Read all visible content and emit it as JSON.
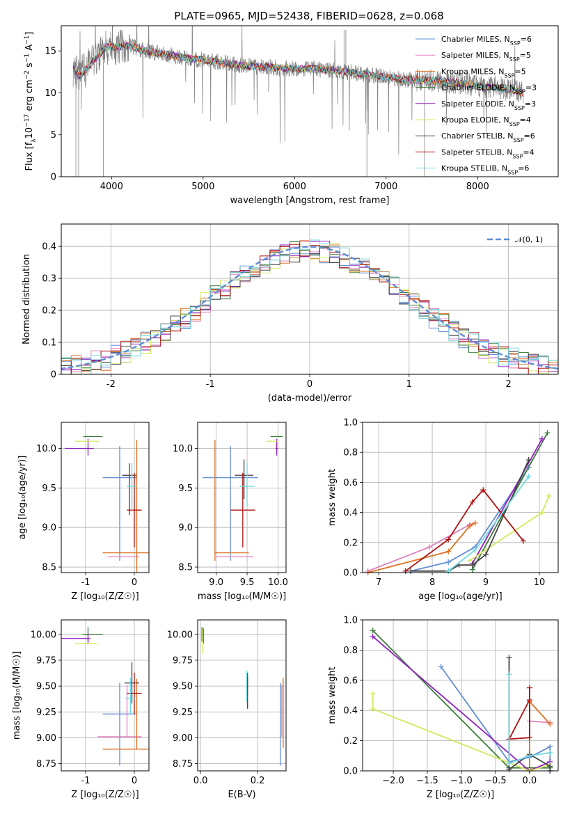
{
  "figure": {
    "title": "PLATE=0965, MJD=52438, FIBERID=0628, z=0.068"
  },
  "colors": {
    "chabrier_miles": "#5f8dd8",
    "salpeter_miles": "#e07fc0",
    "kroupa_miles": "#e07020",
    "chabrier_elodie": "#3c7a3c",
    "salpeter_elodie": "#9020c0",
    "kroupa_elodie": "#d4e860",
    "chabrier_stelib": "#444444",
    "salpeter_stelib": "#b01010",
    "kroupa_stelib": "#70d8e0",
    "data": "#808080",
    "normal": "#5f8dd8"
  },
  "chart_data": [
    {
      "id": "spectrum",
      "type": "line",
      "xlabel": "wavelength [Angstrom, rest frame]",
      "xlim": [
        3450,
        8880
      ],
      "ylim": [
        0,
        18
      ],
      "xticks": [
        4000,
        5000,
        6000,
        7000,
        8000
      ],
      "yticks": [
        0,
        5,
        10,
        15
      ],
      "grid": false,
      "legend_position": "top-right",
      "series": [
        {
          "name": "Chabrier MILES, N",
          "sub": "SSP",
          "suffix": "=6"
        },
        {
          "name": "Salpeter MILES, N",
          "sub": "SSP",
          "suffix": "=5"
        },
        {
          "name": "Kroupa MILES, N",
          "sub": "SSP",
          "suffix": "=5"
        },
        {
          "name": "Chabrier ELODIE, N",
          "sub": "SSP",
          "suffix": "=3"
        },
        {
          "name": "Salpeter ELODIE, N",
          "sub": "SSP",
          "suffix": "=3"
        },
        {
          "name": "Kroupa ELODIE, N",
          "sub": "SSP",
          "suffix": "=4"
        },
        {
          "name": "Chabrier STELIB, N",
          "sub": "SSP",
          "suffix": "=6"
        },
        {
          "name": "Salpeter STELIB, N",
          "sub": "SSP",
          "suffix": "=4"
        },
        {
          "name": "Kroupa STELIB, N",
          "sub": "SSP",
          "suffix": "=6"
        }
      ],
      "continuum": {
        "x": [
          3580,
          3650,
          3800,
          3950,
          4100,
          4200,
          4400,
          4600,
          4800,
          5000,
          5200,
          5500,
          5800,
          6000,
          6200,
          6500,
          6700,
          7000,
          7200,
          7400,
          7600,
          7800,
          8000,
          8200,
          8400,
          8500
        ],
        "y": [
          12.8,
          12.0,
          13.8,
          15.5,
          15.5,
          15.6,
          14.9,
          14.6,
          14.2,
          13.9,
          13.6,
          13.2,
          13.0,
          12.9,
          12.9,
          12.6,
          12.3,
          11.9,
          11.6,
          11.5,
          11.4,
          11.2,
          10.8,
          10.6,
          10.3,
          10.0
        ]
      }
    },
    {
      "id": "residual-histogram",
      "type": "histogram",
      "xlabel": "(data-model)/error",
      "ylabel": "Normed distribution",
      "xlim": [
        -2.5,
        2.5
      ],
      "ylim": [
        0,
        0.47
      ],
      "xticks": [
        -2,
        -1,
        0,
        1,
        2
      ],
      "yticks": [
        0.0,
        0.1,
        0.2,
        0.3,
        0.4
      ],
      "bin_width": 0.1,
      "grid": true,
      "legend_position": "top-right",
      "legend_label": "𝒩(0, 1)",
      "normal": {
        "mean": 0,
        "sigma": 1
      }
    },
    {
      "id": "age-vs-z",
      "type": "errorbar",
      "xlabel": "Z [log₁₀(Z/Z☉)]",
      "ylabel": "age  [log₁₀(age/yr)]",
      "xlim": [
        -1.5,
        0.3
      ],
      "ylim": [
        8.43,
        10.33
      ],
      "xticks": [
        -1,
        0
      ],
      "yticks": [
        8.5,
        9.0,
        9.5,
        10.0
      ],
      "ytick_labels": [
        "8.5",
        "9.0",
        "9.5",
        "10.0"
      ],
      "points": [
        {
          "model": "chabrier_miles",
          "x": -0.3,
          "xerr": [
            0.35,
            0.35
          ],
          "y": 9.63,
          "yerr": [
            1.05,
            0.4
          ]
        },
        {
          "model": "salpeter_miles",
          "x": -0.22,
          "xerr": [
            0.32,
            0.32
          ],
          "y": 8.63,
          "yerr": [
            0,
            0
          ]
        },
        {
          "model": "kroupa_miles",
          "x": 0.05,
          "xerr": [
            0.7,
            0.25
          ],
          "y": 8.68,
          "yerr": [
            0.3,
            1.43
          ]
        },
        {
          "model": "chabrier_elodie",
          "x": -0.93,
          "xerr": [
            0.12,
            0.28
          ],
          "y": 10.15,
          "yerr": [
            0,
            0
          ]
        },
        {
          "model": "salpeter_elodie",
          "x": -0.95,
          "xerr": [
            0.48,
            0.12
          ],
          "y": 10.0,
          "yerr": [
            0.09,
            0.12
          ]
        },
        {
          "model": "kroupa_elodie",
          "x": -0.92,
          "xerr": [
            0.3,
            0.2
          ],
          "y": 10.09,
          "yerr": [
            0,
            0
          ]
        },
        {
          "model": "chabrier_stelib",
          "x": -0.1,
          "xerr": [
            0.15,
            0.15
          ],
          "y": 9.66,
          "yerr": [
            0.5,
            0.15
          ]
        },
        {
          "model": "salpeter_stelib",
          "x": 0.0,
          "xerr": [
            0.15,
            0.15
          ],
          "y": 9.22,
          "yerr": [
            0.47,
            0.47
          ]
        },
        {
          "model": "kroupa_stelib",
          "x": -0.05,
          "xerr": [
            0.1,
            0.1
          ],
          "y": 9.52,
          "yerr": [
            0.3,
            0.3
          ]
        }
      ]
    },
    {
      "id": "age-vs-mass",
      "type": "errorbar",
      "xlabel": "mass [log₁₀(M/M☉)]",
      "xlim": [
        8.7,
        10.13
      ],
      "ylim": [
        8.43,
        10.33
      ],
      "xticks": [
        9.0,
        9.5,
        10.0
      ],
      "xtick_labels": [
        "9.0",
        "9.5",
        "10.0"
      ],
      "yticks": [
        8.5,
        9.0,
        9.5,
        10.0
      ],
      "ytick_labels": [
        "8.5",
        "9.0",
        "9.5",
        "10.0"
      ],
      "points": [
        {
          "model": "chabrier_miles",
          "x": 9.23,
          "xerr": [
            0.45,
            0.45
          ],
          "y": 9.63,
          "yerr": [
            1.05,
            0.4
          ]
        },
        {
          "model": "salpeter_miles",
          "x": 9.3,
          "xerr": [
            0.3,
            0.3
          ],
          "y": 8.63,
          "yerr": [
            0,
            0
          ]
        },
        {
          "model": "kroupa_miles",
          "x": 8.98,
          "xerr": [
            0,
            0.55
          ],
          "y": 8.68,
          "yerr": [
            0.1,
            1.43
          ]
        },
        {
          "model": "chabrier_elodie",
          "x": 9.98,
          "xerr": [
            0.1,
            0.1
          ],
          "y": 10.15,
          "yerr": [
            0,
            0
          ]
        },
        {
          "model": "salpeter_elodie",
          "x": 9.98,
          "xerr": [
            0.02,
            0.02
          ],
          "y": 10.0,
          "yerr": [
            0.09,
            0.12
          ]
        },
        {
          "model": "kroupa_elodie",
          "x": 9.93,
          "xerr": [
            0.12,
            0.07
          ],
          "y": 10.09,
          "yerr": [
            0,
            0
          ]
        },
        {
          "model": "chabrier_stelib",
          "x": 9.45,
          "xerr": [
            0.15,
            0.15
          ],
          "y": 9.66,
          "yerr": [
            0.3,
            0.2
          ]
        },
        {
          "model": "salpeter_stelib",
          "x": 9.43,
          "xerr": [
            0.2,
            0.2
          ],
          "y": 9.22,
          "yerr": [
            0.47,
            0.47
          ]
        },
        {
          "model": "kroupa_stelib",
          "x": 9.5,
          "xerr": [
            0.12,
            0.12
          ],
          "y": 9.52,
          "yerr": [
            0.25,
            0.3
          ]
        }
      ]
    },
    {
      "id": "mass-weight-vs-age",
      "type": "line",
      "xlabel": "age  [log₁₀(age/yr)]",
      "ylabel": "mass weight",
      "xlim": [
        6.7,
        10.35
      ],
      "ylim": [
        0,
        1.0
      ],
      "xticks": [
        7,
        8,
        9,
        10
      ],
      "yticks": [
        0.0,
        0.2,
        0.4,
        0.6,
        0.8,
        1.0
      ],
      "ytick_labels": [
        "0.0",
        "0.2",
        "0.4",
        "0.6",
        "0.8",
        "1.0"
      ],
      "grid": true,
      "series": [
        {
          "model": "chabrier_miles",
          "x": [
            7.6,
            8.3,
            8.8,
            9.8
          ],
          "y": [
            0.01,
            0.07,
            0.17,
            0.7
          ]
        },
        {
          "model": "salpeter_miles",
          "x": [
            6.8,
            7.95,
            8.7,
            8.8
          ],
          "y": [
            0.01,
            0.17,
            0.32,
            0.33
          ]
        },
        {
          "model": "kroupa_miles",
          "x": [
            6.8,
            8.3,
            8.7,
            8.8
          ],
          "y": [
            0.0,
            0.14,
            0.31,
            0.33
          ]
        },
        {
          "model": "chabrier_elodie",
          "x": [
            8.75,
            10.15
          ],
          "y": [
            0.02,
            0.93
          ]
        },
        {
          "model": "salpeter_elodie",
          "x": [
            8.75,
            10.05
          ],
          "y": [
            0.06,
            0.89
          ]
        },
        {
          "model": "kroupa_elodie",
          "x": [
            8.7,
            10.05,
            10.18
          ],
          "y": [
            0.08,
            0.4,
            0.51
          ]
        },
        {
          "model": "chabrier_stelib",
          "x": [
            7.6,
            8.3,
            8.5,
            8.75,
            9.0,
            9.8
          ],
          "y": [
            0.01,
            0.01,
            0.05,
            0.05,
            0.12,
            0.75
          ]
        },
        {
          "model": "salpeter_stelib",
          "x": [
            7.5,
            8.3,
            8.75,
            8.95,
            9.7
          ],
          "y": [
            0.01,
            0.22,
            0.47,
            0.55,
            0.21
          ]
        },
        {
          "model": "kroupa_stelib",
          "x": [
            8.3,
            8.8,
            9.8
          ],
          "y": [
            0.01,
            0.15,
            0.64
          ]
        }
      ]
    },
    {
      "id": "mass-vs-z",
      "type": "errorbar",
      "xlabel": "Z [log₁₀(Z/Z☉)]",
      "ylabel": "mass [log₁₀(M/M☉)]",
      "xlim": [
        -1.5,
        0.3
      ],
      "ylim": [
        8.68,
        10.14
      ],
      "xticks": [
        -1,
        0
      ],
      "yticks": [
        8.75,
        9.0,
        9.25,
        9.5,
        9.75,
        10.0
      ],
      "ytick_labels": [
        "8.75",
        "9.00",
        "9.25",
        "9.50",
        "9.75",
        "10.00"
      ],
      "points": [
        {
          "model": "chabrier_miles",
          "x": -0.3,
          "xerr": [
            0.35,
            0.35
          ],
          "y": 9.23,
          "yerr": [
            0.5,
            0.3
          ]
        },
        {
          "model": "salpeter_miles",
          "x": -0.15,
          "xerr": [
            0.6,
            0.3
          ],
          "y": 9.01,
          "yerr": [
            0,
            0.5
          ]
        },
        {
          "model": "kroupa_miles",
          "x": 0.05,
          "xerr": [
            0.7,
            0.25
          ],
          "y": 8.89,
          "yerr": [
            0,
            0.68
          ]
        },
        {
          "model": "chabrier_elodie",
          "x": -0.95,
          "xerr": [
            0.12,
            0.3
          ],
          "y": 10.0,
          "yerr": [
            0.07,
            0.07
          ]
        },
        {
          "model": "salpeter_elodie",
          "x": -0.95,
          "xerr": [
            0.55,
            0.05
          ],
          "y": 9.96,
          "yerr": [
            0.05,
            0.05
          ]
        },
        {
          "model": "kroupa_elodie",
          "x": -0.92,
          "xerr": [
            0.3,
            0.15
          ],
          "y": 9.91,
          "yerr": [
            0,
            0
          ]
        },
        {
          "model": "chabrier_stelib",
          "x": -0.05,
          "xerr": [
            0.15,
            0.15
          ],
          "y": 9.53,
          "yerr": [
            0.2,
            0.2
          ]
        },
        {
          "model": "salpeter_stelib",
          "x": 0.0,
          "xerr": [
            0.15,
            0.15
          ],
          "y": 9.43,
          "yerr": [
            0.2,
            0.2
          ]
        },
        {
          "model": "kroupa_stelib",
          "x": -0.08,
          "xerr": [
            0.1,
            0.1
          ],
          "y": 9.38,
          "yerr": [
            0.15,
            0.2
          ]
        }
      ]
    },
    {
      "id": "mass-vs-ebv",
      "type": "errorbar",
      "xlabel": "E(B-V)",
      "xlim": [
        -0.01,
        0.3
      ],
      "ylim": [
        8.68,
        10.14
      ],
      "xticks": [
        0.0,
        0.2
      ],
      "xtick_labels": [
        "0.0",
        "0.2"
      ],
      "yticks": [
        8.75,
        9.0,
        9.25,
        9.5,
        9.75,
        10.0
      ],
      "ytick_labels": [
        "8.75",
        "9.00",
        "9.25",
        "9.50",
        "9.75",
        "10.00"
      ],
      "points": [
        {
          "model": "chabrier_miles",
          "x": 0.28,
          "xerr": [
            0,
            0
          ],
          "y": 9.23,
          "yerr": [
            0.5,
            0.3
          ]
        },
        {
          "model": "salpeter_miles",
          "x": 0.285,
          "xerr": [
            0,
            0
          ],
          "y": 9.01,
          "yerr": [
            0,
            0.5
          ]
        },
        {
          "model": "kroupa_miles",
          "x": 0.29,
          "xerr": [
            0,
            0
          ],
          "y": 9.2,
          "yerr": [
            0.3,
            0.38
          ]
        },
        {
          "model": "chabrier_elodie",
          "x": 0.005,
          "xerr": [
            0,
            0
          ],
          "y": 10.0,
          "yerr": [
            0.07,
            0.07
          ]
        },
        {
          "model": "salpeter_elodie",
          "x": 0.01,
          "xerr": [
            0,
            0
          ],
          "y": 9.96,
          "yerr": [
            0.05,
            0.1
          ]
        },
        {
          "model": "kroupa_elodie",
          "x": 0.008,
          "xerr": [
            0,
            0
          ],
          "y": 9.91,
          "yerr": [
            0.1,
            0.15
          ]
        },
        {
          "model": "chabrier_stelib",
          "x": 0.165,
          "xerr": [
            0,
            0
          ],
          "y": 9.53,
          "yerr": [
            0.1,
            0.1
          ]
        },
        {
          "model": "salpeter_stelib",
          "x": 0.165,
          "xerr": [
            0,
            0
          ],
          "y": 9.43,
          "yerr": [
            0.15,
            0.15
          ]
        },
        {
          "model": "kroupa_stelib",
          "x": 0.162,
          "xerr": [
            0,
            0
          ],
          "y": 9.5,
          "yerr": [
            0.15,
            0.15
          ]
        }
      ]
    },
    {
      "id": "mass-weight-vs-z",
      "type": "line",
      "xlabel": "Z [log₁₀(Z/Z☉)]",
      "ylabel": "mass weight",
      "xlim": [
        -2.45,
        0.42
      ],
      "ylim": [
        0,
        1.0
      ],
      "xticks": [
        -2.0,
        -1.5,
        -1.0,
        -0.5,
        0.0
      ],
      "xtick_labels": [
        "−2.0",
        "−1.5",
        "−1.0",
        "−0.5",
        "0.0"
      ],
      "yticks": [
        0.0,
        0.2,
        0.4,
        0.6,
        0.8,
        1.0
      ],
      "ytick_labels": [
        "0.0",
        "0.2",
        "0.4",
        "0.6",
        "0.8",
        "1.0"
      ],
      "grid": true,
      "series": [
        {
          "model": "chabrier_miles",
          "x": [
            -1.3,
            -0.3,
            0.0,
            0.3,
            0.3
          ],
          "y": [
            0.69,
            0.06,
            0.09,
            0.16,
            0.0
          ]
        },
        {
          "model": "salpeter_miles",
          "x": [
            0.0,
            0.3
          ],
          "y": [
            0.33,
            0.32
          ]
        },
        {
          "model": "kroupa_miles",
          "x": [
            0.0,
            0.0,
            0.3
          ],
          "y": [
            0.01,
            0.46,
            0.31
          ]
        },
        {
          "model": "chabrier_elodie",
          "x": [
            -2.3,
            -0.3,
            0.3
          ],
          "y": [
            0.93,
            0.02,
            0.02
          ]
        },
        {
          "model": "salpeter_elodie",
          "x": [
            -2.3,
            0.0,
            0.3
          ],
          "y": [
            0.89,
            0.0,
            0.06
          ]
        },
        {
          "model": "kroupa_elodie",
          "x": [
            -2.3,
            -2.3,
            0.0,
            0.3
          ],
          "y": [
            0.51,
            0.41,
            0.0,
            0.04
          ]
        },
        {
          "model": "chabrier_stelib",
          "x": [
            -0.3,
            -0.3,
            0.0,
            0.3,
            0.3
          ],
          "y": [
            0.75,
            0.01,
            0.11,
            0.03,
            0.0
          ]
        },
        {
          "model": "salpeter_stelib",
          "x": [
            0.0,
            0.0,
            -0.3,
            0.0
          ],
          "y": [
            0.55,
            0.22,
            0.21,
            0.47
          ]
        },
        {
          "model": "kroupa_stelib",
          "x": [
            -0.3,
            -0.3,
            0.0,
            0.3
          ],
          "y": [
            0.64,
            0.05,
            0.1,
            0.12
          ]
        }
      ]
    }
  ]
}
